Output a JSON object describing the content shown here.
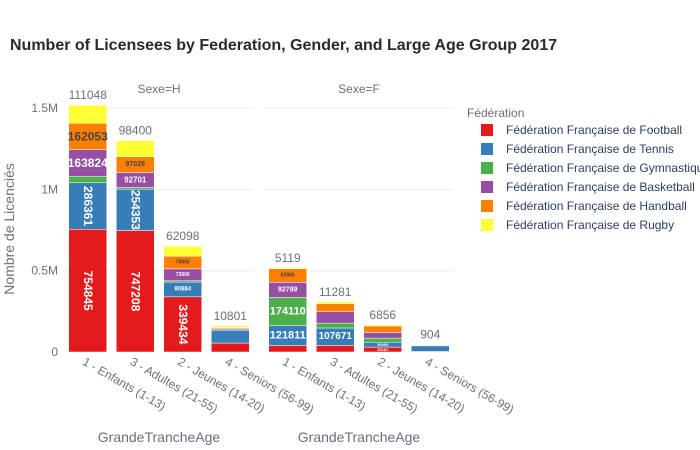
{
  "chart_data": {
    "type": "bar",
    "title": "Number of Licensees by Federation, Gender, and Large Age Group 2017",
    "ylabel": "Nombre de Licenciés",
    "xlabel": "GrandeTrancheAge",
    "ylim": [
      0,
      1550000
    ],
    "yticks": [
      {
        "value": 0,
        "label": "0"
      },
      {
        "value": 500000,
        "label": "0.5M"
      },
      {
        "value": 1000000,
        "label": "1M"
      },
      {
        "value": 1500000,
        "label": "1.5M"
      }
    ],
    "legend_title": "Fédération",
    "legend_position": "right",
    "colors": {
      "Fédération Française de Football": "#e41a1c",
      "Fédération Française de Tennis": "#377eb8",
      "Fédération Française de Gymnastique": "#4daf4a",
      "Fédération Française de Basketball": "#984ea3",
      "Fédération Française de Handball": "#ff7f00",
      "Fédération Française de Rugby": "#ffff33"
    },
    "series_order": [
      "Fédération Française de Football",
      "Fédération Française de Tennis",
      "Fédération Française de Gymnastique",
      "Fédération Française de Basketball",
      "Fédération Française de Handball",
      "Fédération Française de Rugby"
    ],
    "legend": [
      {
        "name": "Fédération Française de Football",
        "label": "Fédération Française de Football"
      },
      {
        "name": "Fédération Française de Tennis",
        "label": "Fédération Française de Tennis"
      },
      {
        "name": "Fédération Française de Gymnastique",
        "label": "Fédération Française de Gymnastique"
      },
      {
        "name": "Fédération Française de Basketball",
        "label": "Fédération Française de Basketball"
      },
      {
        "name": "Fédération Française de Handball",
        "label": "Fédération Française de Handball"
      },
      {
        "name": "Fédération Française de Rugby",
        "label": "Fédération Française de Rugby"
      }
    ],
    "facets": [
      {
        "label": "Sexe=H",
        "categories": [
          "1 - Enfants (1-13)",
          "3 - Adultes (21-55)",
          "2 - Jeunes (14-20)",
          "4 - Seniors (56-99)"
        ],
        "series": [
          {
            "name": "Fédération Française de Football",
            "values": [
              754845,
              747208,
              339434,
              55000
            ]
          },
          {
            "name": "Fédération Française de Tennis",
            "values": [
              286361,
              254353,
              90884,
              80000
            ]
          },
          {
            "name": "Fédération Française de Gymnastique",
            "values": [
              40000,
              10000,
              8000,
              2000
            ]
          },
          {
            "name": "Fédération Française de Basketball",
            "values": [
              163824,
              92701,
              73000,
              8000
            ]
          },
          {
            "name": "Fédération Française de Handball",
            "values": [
              162053,
              97028,
              78000,
              5000
            ]
          },
          {
            "name": "Fédération Française de Rugby",
            "values": [
              111048,
              98400,
              62098,
              10801
            ]
          }
        ]
      },
      {
        "label": "Sexe=F",
        "categories": [
          "1 - Enfants (1-13)",
          "3 - Adultes (21-55)",
          "2 - Jeunes (14-20)",
          "4 - Seniors (56-99)"
        ],
        "series": [
          {
            "name": "Fédération Française de Football",
            "values": [
              40000,
              40000,
              30181,
              3000
            ]
          },
          {
            "name": "Fédération Française de Tennis",
            "values": [
              121811,
              107671,
              30000,
              35000
            ]
          },
          {
            "name": "Fédération Française de Gymnastique",
            "values": [
              174110,
              30000,
              25000,
              3000
            ]
          },
          {
            "name": "Fédération Française de Basketball",
            "values": [
              92789,
              70000,
              35000,
              2000
            ]
          },
          {
            "name": "Fédération Française de Handball",
            "values": [
              83980,
              50000,
              40000,
              1000
            ]
          },
          {
            "name": "Fédération Française de Rugby",
            "values": [
              5119,
              11281,
              6856,
              904
            ]
          }
        ]
      }
    ],
    "annotations": [
      {
        "facet": 0,
        "category": 0,
        "series": "Fédération Française de Football",
        "text": "754845",
        "size": 12,
        "rotate": 90
      },
      {
        "facet": 0,
        "category": 0,
        "series": "Fédération Française de Tennis",
        "text": "286361",
        "size": 12,
        "rotate": 90
      },
      {
        "facet": 0,
        "category": 0,
        "series": "Fédération Française de Basketball",
        "text": "163824",
        "size": 12,
        "rotate": 0
      },
      {
        "facet": 0,
        "category": 0,
        "series": "Fédération Française de Handball",
        "text": "162053",
        "size": 12,
        "rotate": 0
      },
      {
        "facet": 0,
        "category": 1,
        "series": "Fédération Française de Football",
        "text": "747208",
        "size": 12,
        "rotate": 90
      },
      {
        "facet": 0,
        "category": 1,
        "series": "Fédération Française de Tennis",
        "text": "254353",
        "size": 12,
        "rotate": 90
      },
      {
        "facet": 0,
        "category": 1,
        "series": "Fédération Française de Basketball",
        "text": "92701",
        "size": 8,
        "rotate": 0
      },
      {
        "facet": 0,
        "category": 1,
        "series": "Fédération Française de Handball",
        "text": "97028",
        "size": 7,
        "rotate": 0
      },
      {
        "facet": 0,
        "category": 2,
        "series": "Fédération Française de Football",
        "text": "339434",
        "size": 12,
        "rotate": 90
      },
      {
        "facet": 0,
        "category": 2,
        "series": "Fédération Française de Tennis",
        "text": "90884",
        "size": 6,
        "rotate": 0
      },
      {
        "facet": 0,
        "category": 2,
        "series": "Fédération Française de Basketball",
        "text": "73000",
        "size": 5,
        "rotate": 0
      },
      {
        "facet": 0,
        "category": 2,
        "series": "Fédération Française de Handball",
        "text": "78000",
        "size": 5,
        "rotate": 0
      },
      {
        "facet": 1,
        "category": 0,
        "series": "Fédération Française de Tennis",
        "text": "121811",
        "size": 11,
        "rotate": 0
      },
      {
        "facet": 1,
        "category": 0,
        "series": "Fédération Française de Gymnastique",
        "text": "174110",
        "size": 11,
        "rotate": 0
      },
      {
        "facet": 1,
        "category": 0,
        "series": "Fédération Française de Basketball",
        "text": "92789",
        "size": 7,
        "rotate": 0
      },
      {
        "facet": 1,
        "category": 0,
        "series": "Fédération Française de Handball",
        "text": "83980",
        "size": 5,
        "rotate": 0
      },
      {
        "facet": 1,
        "category": 1,
        "series": "Fédération Française de Tennis",
        "text": "107671",
        "size": 10,
        "rotate": 0
      },
      {
        "facet": 1,
        "category": 2,
        "series": "Fédération Française de Football",
        "text": "30181",
        "size": 4,
        "rotate": 0
      },
      {
        "facet": 1,
        "category": 2,
        "series": "Fédération Française de Tennis",
        "text": "30000",
        "size": 4,
        "rotate": 0
      }
    ]
  }
}
